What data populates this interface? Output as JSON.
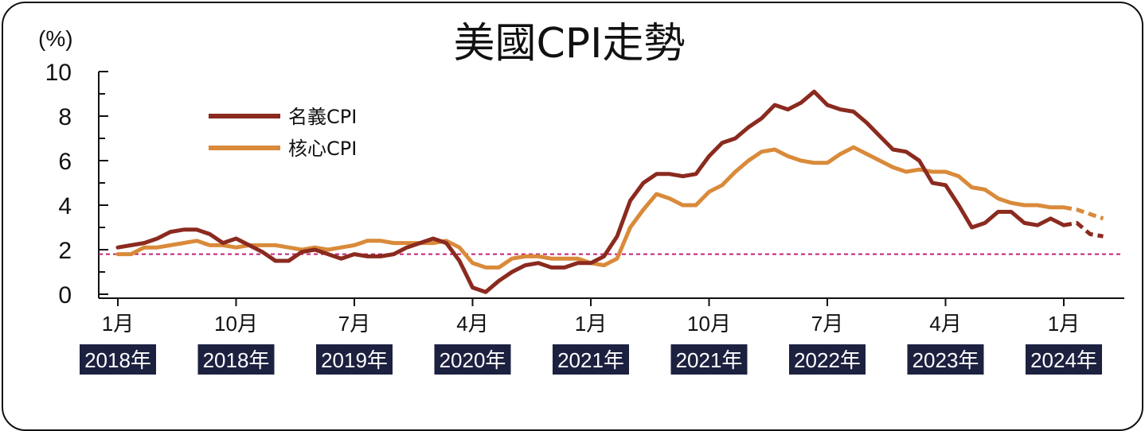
{
  "chart_data": {
    "type": "line",
    "title": "美國CPI走勢",
    "unit_label": "(%)",
    "ylim": [
      0,
      10
    ],
    "y_ticks": [
      "0",
      "2",
      "4",
      "6",
      "8",
      "10"
    ],
    "x_ticks": [
      {
        "month": "1月",
        "year": "2018年",
        "t": 0
      },
      {
        "month": "10月",
        "year": "2018年",
        "t": 9
      },
      {
        "month": "7月",
        "year": "2019年",
        "t": 18
      },
      {
        "month": "4月",
        "year": "2020年",
        "t": 27
      },
      {
        "month": "1月",
        "year": "2021年",
        "t": 36
      },
      {
        "month": "10月",
        "year": "2021年",
        "t": 45
      },
      {
        "month": "7月",
        "year": "2022年",
        "t": 54
      },
      {
        "month": "4月",
        "year": "2023年",
        "t": 63
      },
      {
        "month": "1月",
        "year": "2024年",
        "t": 72
      }
    ],
    "reference_line": {
      "value": 1.8,
      "style": "dashed",
      "color": "#c0207a"
    },
    "legend_position": "top-left",
    "series": [
      {
        "name": "名義CPI",
        "color": "#8b2a1f",
        "values": [
          2.1,
          2.2,
          2.3,
          2.5,
          2.8,
          2.9,
          2.9,
          2.7,
          2.3,
          2.5,
          2.2,
          1.9,
          1.5,
          1.5,
          1.9,
          2.0,
          1.8,
          1.6,
          1.8,
          1.7,
          1.7,
          1.8,
          2.1,
          2.3,
          2.5,
          2.3,
          1.5,
          0.3,
          0.1,
          0.6,
          1.0,
          1.3,
          1.4,
          1.2,
          1.2,
          1.4,
          1.4,
          1.7,
          2.6,
          4.2,
          5.0,
          5.4,
          5.4,
          5.3,
          5.4,
          6.2,
          6.8,
          7.0,
          7.5,
          7.9,
          8.5,
          8.3,
          8.6,
          9.1,
          8.5,
          8.3,
          8.2,
          7.7,
          7.1,
          6.5,
          6.4,
          6.0,
          5.0,
          4.9,
          4.0,
          3.0,
          3.2,
          3.7,
          3.7,
          3.2,
          3.1,
          3.4,
          3.1,
          3.2,
          2.7,
          2.6
        ],
        "dashed_from_index": 72
      },
      {
        "name": "核心CPI",
        "color": "#d98a3a",
        "values": [
          1.8,
          1.8,
          2.1,
          2.1,
          2.2,
          2.3,
          2.4,
          2.2,
          2.2,
          2.1,
          2.2,
          2.2,
          2.2,
          2.1,
          2.0,
          2.1,
          2.0,
          2.1,
          2.2,
          2.4,
          2.4,
          2.3,
          2.3,
          2.3,
          2.3,
          2.4,
          2.1,
          1.4,
          1.2,
          1.2,
          1.6,
          1.7,
          1.7,
          1.6,
          1.6,
          1.6,
          1.4,
          1.3,
          1.6,
          3.0,
          3.8,
          4.5,
          4.3,
          4.0,
          4.0,
          4.6,
          4.9,
          5.5,
          6.0,
          6.4,
          6.5,
          6.2,
          6.0,
          5.9,
          5.9,
          6.3,
          6.6,
          6.3,
          6.0,
          5.7,
          5.5,
          5.6,
          5.5,
          5.5,
          5.3,
          4.8,
          4.7,
          4.3,
          4.1,
          4.0,
          4.0,
          3.9,
          3.9,
          3.8,
          3.6,
          3.4
        ],
        "dashed_from_index": 72
      }
    ]
  }
}
